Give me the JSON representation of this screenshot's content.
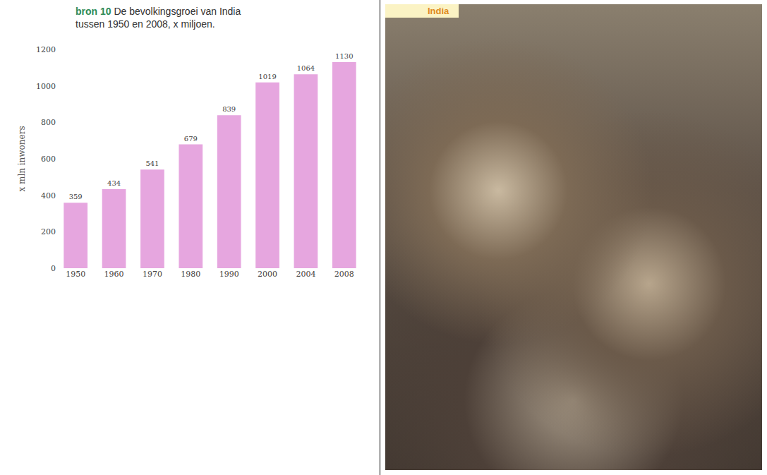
{
  "chart_data": {
    "type": "bar",
    "label": "bron 10",
    "title": "De bevolkingsgroei van India tussen 1950 en 2008, x miljoen.",
    "y_label": "x mln inwoners",
    "categories": [
      "1950",
      "1960",
      "1970",
      "1980",
      "1990",
      "2000",
      "2004",
      "2008"
    ],
    "values": [
      359,
      434,
      541,
      679,
      839,
      1019,
      1064,
      1130
    ],
    "color": "#e6a6df",
    "ylim": [
      0,
      1200
    ],
    "yticks": [
      0,
      200,
      400,
      600,
      800,
      1000,
      1200
    ],
    "grid": false,
    "data_labels": true
  },
  "photo": {
    "label": "India"
  }
}
